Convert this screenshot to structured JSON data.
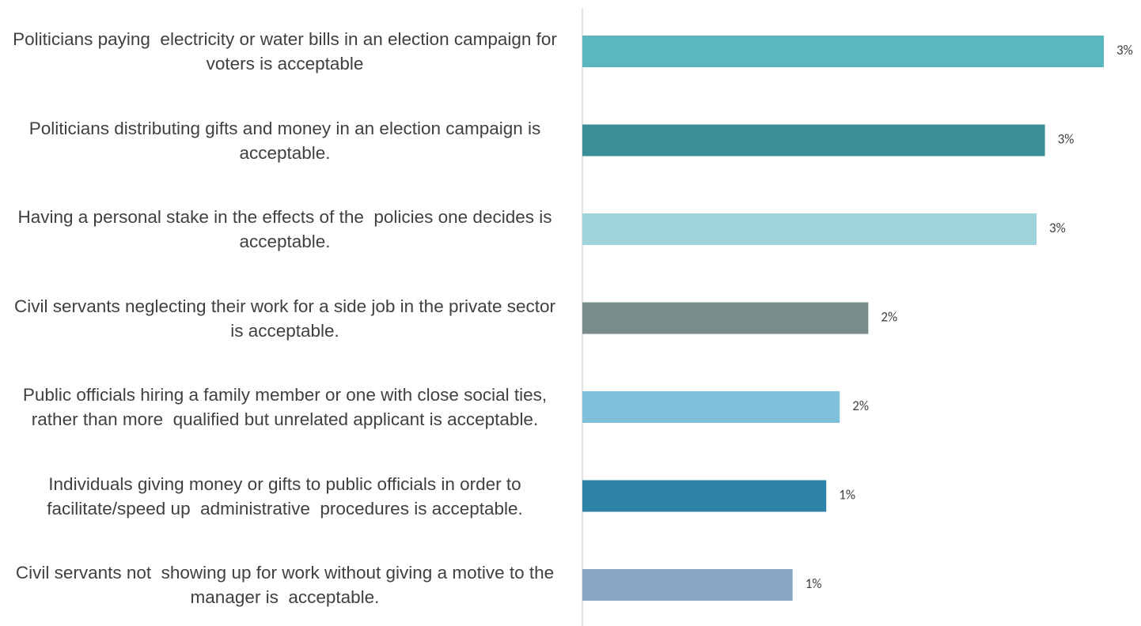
{
  "chart_data": {
    "type": "bar",
    "orientation": "horizontal",
    "categories": [
      "Politicians paying  electricity or water bills in an election campaign for voters is acceptable",
      "Politicians distributing gifts and money in an election campaign is acceptable.",
      "Having a personal stake in the effects of the  policies one decides is acceptable.",
      "Civil servants neglecting their work for a side job in the private sector is acceptable.",
      "Public officials hiring a family member or one with close social ties, rather than more  qualified but unrelated applicant is acceptable.",
      "Individuals giving money or gifts to public officials in order to  facilitate/speed up  administrative  procedures is acceptable.",
      "Civil servants not  showing up for work without giving a motive to the manager is  acceptable."
    ],
    "values": [
      3.1,
      2.75,
      2.7,
      1.7,
      1.53,
      1.45,
      1.25
    ],
    "value_labels": [
      "3%",
      "3%",
      "3%",
      "2%",
      "2%",
      "1%",
      "1%"
    ],
    "colors": [
      "#5ab6c0",
      "#3a8f97",
      "#9dd4da",
      "#7a8b8c",
      "#7fc0db",
      "#2e84a8",
      "#87a7c3"
    ]
  }
}
